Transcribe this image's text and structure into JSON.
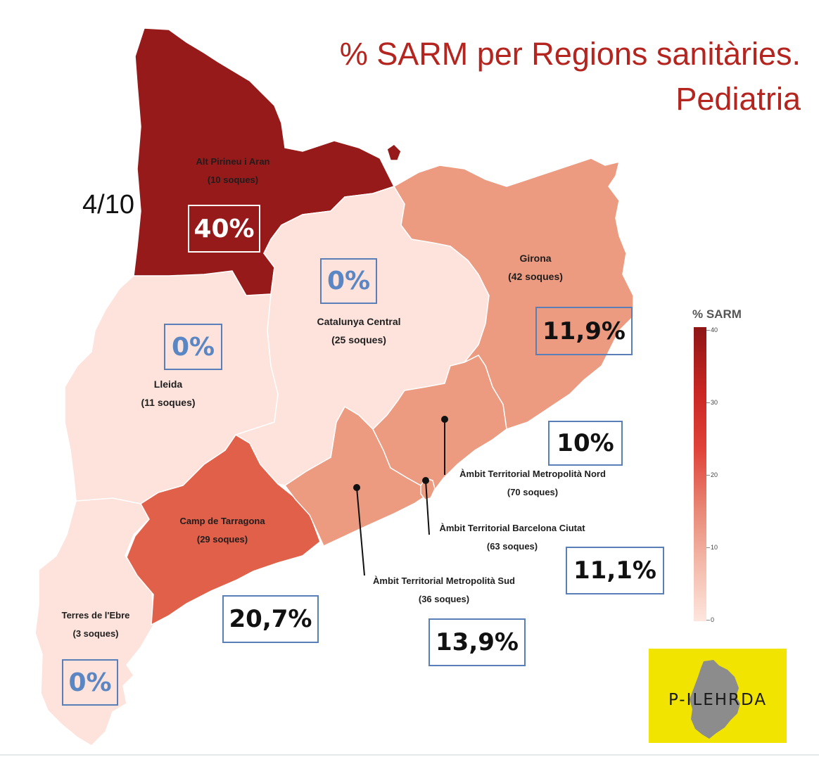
{
  "title": {
    "line1": "% SARM per Regions sanitàries.",
    "line2": "Pediatria"
  },
  "side_note": "4/10",
  "regions": [
    {
      "id": "alt-pirineu",
      "name": "Alt Pirineu i Aran",
      "samples": "(10 soques)",
      "pct_label": "40%",
      "value": 40
    },
    {
      "id": "lleida",
      "name": "Lleida",
      "samples": "(11 soques)",
      "pct_label": "0%",
      "value": 0
    },
    {
      "id": "catalunya-central",
      "name": "Catalunya Central",
      "samples": "(25 soques)",
      "pct_label": "0%",
      "value": 0
    },
    {
      "id": "girona",
      "name": "Girona",
      "samples": "(42 soques)",
      "pct_label": "11,9%",
      "value": 11.9
    },
    {
      "id": "metro-nord",
      "name": "Àmbit Territorial Metropolità Nord",
      "samples": "(70 soques)",
      "pct_label": "10%",
      "value": 10
    },
    {
      "id": "barcelona-ciutat",
      "name": "Àmbit Territorial Barcelona Ciutat",
      "samples": "(63 soques)",
      "pct_label": "11,1%",
      "value": 11.1
    },
    {
      "id": "metro-sud",
      "name": "Àmbit Territorial Metropolità Sud",
      "samples": "(36 soques)",
      "pct_label": "13,9%",
      "value": 13.9
    },
    {
      "id": "camp-tarragona",
      "name": "Camp de Tarragona",
      "samples": "(29 soques)",
      "pct_label": "20,7%",
      "value": 20.7
    },
    {
      "id": "terres-ebre",
      "name": "Terres de l'Ebre",
      "samples": "(3 soques)",
      "pct_label": "0%",
      "value": 0
    }
  ],
  "legend": {
    "title": "% SARM",
    "ticks": [
      "40",
      "30",
      "20",
      "10",
      "0"
    ],
    "colors": {
      "v40": "#961a1a",
      "v20": "#e0604a",
      "v12": "#ec9a80",
      "v0": "#fde3db"
    }
  },
  "logo": {
    "text": "P-ILEHRDA"
  }
}
